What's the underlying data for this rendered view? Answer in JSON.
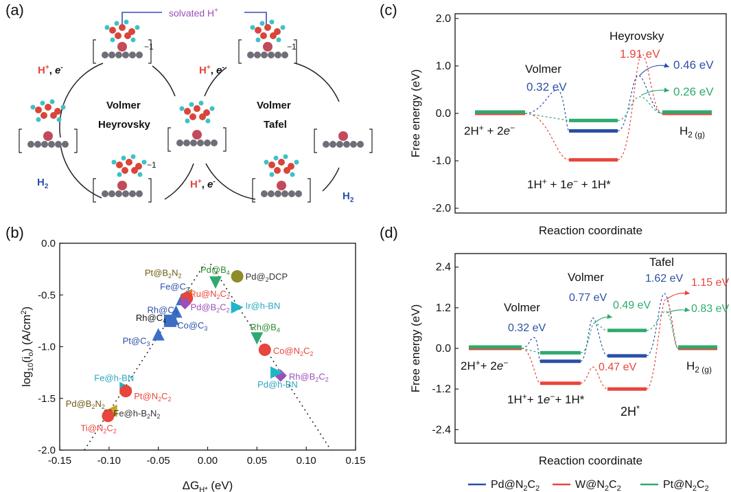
{
  "panels": {
    "a": "(a)",
    "b": "(b)",
    "c": "(c)",
    "d": "(d)"
  },
  "panel_a": {
    "solvated": "solvated H",
    "solvated_sup": "+",
    "cycle_left": [
      "Volmer",
      "Heyrovsky"
    ],
    "cycle_right": [
      "Volmer",
      "Tafel"
    ],
    "h_plus_e": "H",
    "charge": "−1",
    "h2": "H",
    "h2_sub": "2"
  },
  "colors": {
    "pd": "#2b4fa8",
    "w": "#e8453c",
    "pt": "#2eaa6e",
    "black": "#111111",
    "purple": "#9b4fb8"
  },
  "panel_b": {
    "xlabel": "ΔG",
    "xlabel_sub": "H*",
    "xlabel_unit": " (eV)",
    "ylabel": "log",
    "ylabel_sub": "10",
    "ylabel_mid": "(i",
    "ylabel_sub2": "o",
    "ylabel_unit": ") (A/cm",
    "ylabel_sup": "2",
    "ylabel_end": ")"
  },
  "chart_data": [
    {
      "type": "scatter",
      "panel": "b",
      "xlim": [
        -0.15,
        0.15
      ],
      "ylim": [
        -2.0,
        0.0
      ],
      "xticks": [
        "-0.15",
        "-0.10",
        "-0.05",
        "0.00",
        "0.05",
        "0.10",
        "0.15"
      ],
      "yticks": [
        "0.0",
        "-0.5",
        "-1.0",
        "-1.5",
        "-2.0"
      ],
      "points": [
        {
          "label": "Pd@B4",
          "x": 0.008,
          "y": -0.38,
          "shape": "tri-down",
          "color": "#2eaa6e",
          "labelColor": "#2a8a2a"
        },
        {
          "label": "Pd@2DCP",
          "x": 0.03,
          "y": -0.32,
          "shape": "circle",
          "color": "#8c8c2a",
          "labelColor": "#333333"
        },
        {
          "label": "Pt@B2N2",
          "x": -0.022,
          "y": -0.5,
          "shape": "tri-left",
          "color": "#c9a227",
          "labelColor": "#6b5a10"
        },
        {
          "label": "Fe@C3",
          "x": -0.026,
          "y": -0.54,
          "shape": "tri-up",
          "color": "#3a6fc4",
          "labelColor": "#2b4fa8"
        },
        {
          "label": "Ru@N2C2",
          "x": -0.021,
          "y": -0.53,
          "shape": "circle",
          "color": "#e8453c",
          "labelColor": "#e8453c"
        },
        {
          "label": "Pd@B2C2",
          "x": -0.023,
          "y": -0.58,
          "shape": "diamond",
          "color": "#9b4fb8",
          "labelColor": "#9b4fb8"
        },
        {
          "label": "Rh@C3",
          "x": -0.032,
          "y": -0.66,
          "shape": "tri-up",
          "color": "#3a6fc4",
          "labelColor": "#2b4fa8"
        },
        {
          "label": "Rh@C4",
          "x": -0.038,
          "y": -0.75,
          "shape": "square",
          "color": "#3a6fc4",
          "labelColor": "#111111"
        },
        {
          "label": "Co@C3",
          "x": -0.035,
          "y": -0.73,
          "shape": "tri-up",
          "color": "#3a6fc4",
          "labelColor": "#2b4fa8"
        },
        {
          "label": "Ir@h-BN",
          "x": 0.03,
          "y": -0.62,
          "shape": "tri-right",
          "color": "#22b5c8",
          "labelColor": "#2aa6c0"
        },
        {
          "label": "Pt@C3",
          "x": -0.05,
          "y": -0.88,
          "shape": "tri-up",
          "color": "#3a6fc4",
          "labelColor": "#2b4fa8"
        },
        {
          "label": "Rh@B4",
          "x": 0.05,
          "y": -0.92,
          "shape": "tri-down",
          "color": "#2eaa6e",
          "labelColor": "#2a8a2a"
        },
        {
          "label": "Co@N2C2",
          "x": 0.058,
          "y": -1.03,
          "shape": "circle",
          "color": "#e8453c",
          "labelColor": "#e8453c"
        },
        {
          "label": "Rh@B2C2",
          "x": 0.074,
          "y": -1.28,
          "shape": "diamond",
          "color": "#9b4fb8",
          "labelColor": "#9b4fb8"
        },
        {
          "label": "Pd@h-BN",
          "x": 0.07,
          "y": -1.25,
          "shape": "tri-right",
          "color": "#22b5c8",
          "labelColor": "#2aa6c0"
        },
        {
          "label": "Fe@h-BN",
          "x": -0.083,
          "y": -1.4,
          "shape": "tri-right",
          "color": "#22b5c8",
          "labelColor": "#2aa6c0"
        },
        {
          "label": "Pt@N2C2",
          "x": -0.083,
          "y": -1.43,
          "shape": "circle",
          "color": "#e8453c",
          "labelColor": "#e8453c"
        },
        {
          "label": "Pd@B2N2",
          "x": -0.098,
          "y": -1.62,
          "shape": "tri-left",
          "color": "#c9a227",
          "labelColor": "#6b5a10"
        },
        {
          "label": "Fe@h-B2N2",
          "x": -0.101,
          "y": -1.66,
          "shape": "hexagon",
          "color": "#5a3a22",
          "labelColor": "#333333"
        },
        {
          "label": "Ti@N2C2",
          "x": -0.101,
          "y": -1.67,
          "shape": "circle",
          "color": "#e8453c",
          "labelColor": "#e8453c"
        }
      ]
    },
    {
      "type": "line",
      "panel": "c",
      "ylabel": "Free energy (eV)",
      "xlabel": "Reaction coordinate",
      "ylim": [
        -2.1,
        2.1
      ],
      "yticks": [
        "2.0",
        "1.0",
        "0.0",
        "-1.0",
        "-2.0"
      ],
      "series": [
        {
          "name": "Pd@N2C2",
          "levels": [
            0,
            -0.37,
            0
          ],
          "barriers": [
            0.32,
            0.46
          ]
        },
        {
          "name": "W@N2C2",
          "levels": [
            0,
            -0.98,
            0
          ],
          "barriers": [
            0.32,
            1.91
          ]
        },
        {
          "name": "Pt@N2C2",
          "levels": [
            0,
            -0.15,
            0
          ],
          "barriers": [
            0.0,
            0.26
          ]
        }
      ],
      "annotations": {
        "volmer": "Volmer",
        "heyrovsky": "Heyrovsky",
        "volmer_e": "0.32 eV",
        "w_e": "1.91 eV",
        "pd_e": "0.46 eV",
        "pt_e": "0.26 eV",
        "start": "2H",
        "start_sup": "+",
        "start_tail": " + 2",
        "start_e": "e",
        "start_esup": "−",
        "mid": "1H",
        "mid_sup": "+",
        "mid_tail": " + 1",
        "mid_e": "e",
        "mid_esup": "−",
        "mid_tail2": " + 1H*",
        "end": "H",
        "end_sub": "2 (g)"
      }
    },
    {
      "type": "line",
      "panel": "d",
      "ylabel": "Free energy (eV)",
      "xlabel": "Reaction coordinate",
      "ylim": [
        -2.8,
        2.8
      ],
      "yticks": [
        "2.4",
        "1.2",
        "0.0",
        "-1.2",
        "-2.4"
      ],
      "series": [
        {
          "name": "Pd@N2C2",
          "levels": [
            0,
            -0.38,
            -0.22,
            0
          ]
        },
        {
          "name": "W@N2C2",
          "levels": [
            0,
            -1.03,
            -1.2,
            0
          ]
        },
        {
          "name": "Pt@N2C2",
          "levels": [
            0,
            -0.13,
            0.53,
            0
          ]
        }
      ],
      "annotations": {
        "volmer1": "Volmer",
        "volmer2": "Volmer",
        "tafel": "Tafel",
        "e1": "0.32 eV",
        "e2": "0.77 eV",
        "e3": "0.49 eV",
        "e4": "1.62 eV",
        "e5": "1.15 eV",
        "e6": "0.83 eV",
        "e7": "0.47 eV",
        "start": "2H",
        "start_sup": "+",
        "start_tail": "+ 2",
        "start_e": "e",
        "start_esup": "−",
        "mid": "1H",
        "mid_sup": "+",
        "mid_tail": "+ 1",
        "mid_e": "e",
        "mid_esup": "−",
        "mid_tail2": "+ 1H*",
        "two_h": "2H",
        "two_h_sup": "*",
        "end": "H",
        "end_sub": "2 (g)"
      }
    }
  ],
  "legend": [
    {
      "name": "Pd@N",
      "sub1": "2",
      "mid": "C",
      "sub2": "2",
      "color": "#2b4fa8"
    },
    {
      "name": "W@N",
      "sub1": "2",
      "mid": "C",
      "sub2": "2",
      "color": "#e8453c"
    },
    {
      "name": "Pt@N",
      "sub1": "2",
      "mid": "C",
      "sub2": "2",
      "color": "#2eaa6e"
    }
  ]
}
